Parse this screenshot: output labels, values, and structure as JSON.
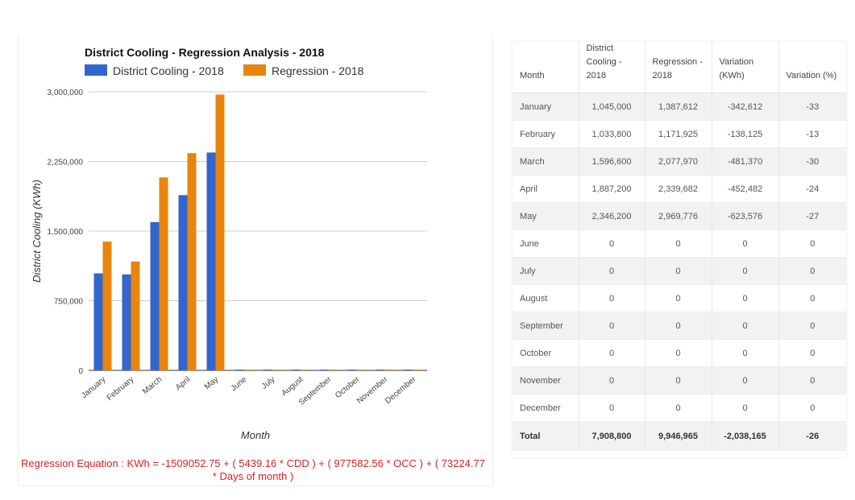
{
  "chart_data": {
    "type": "bar",
    "title": "District Cooling - Regression Analysis - 2018",
    "xlabel": "Month",
    "ylabel": "District Cooling (KWh)",
    "ylim": [
      0,
      3000000
    ],
    "yticks": [
      "0",
      "750,000",
      "1,500,000",
      "2,250,000",
      "3,000,000"
    ],
    "ytick_values": [
      0,
      750000,
      1500000,
      2250000,
      3000000
    ],
    "categories": [
      "January",
      "February",
      "March",
      "April",
      "May",
      "June",
      "July",
      "August",
      "September",
      "October",
      "November",
      "December"
    ],
    "series": [
      {
        "name": "District Cooling - 2018",
        "color": "#3366cc",
        "values": [
          1045000,
          1033800,
          1596600,
          1887200,
          2346200,
          0,
          0,
          0,
          0,
          0,
          0,
          0
        ]
      },
      {
        "name": "Regression - 2018",
        "color": "#e8850c",
        "values": [
          1387612,
          1171925,
          2077970,
          2339682,
          2969776,
          0,
          0,
          0,
          0,
          0,
          0,
          0
        ]
      }
    ],
    "legend": "top-left",
    "grid": true
  },
  "equation": "Regression Equation : KWh = -1509052.75 + ( 5439.16 * CDD ) + ( 977582.56 * OCC ) + ( 73224.77 * Days of month )",
  "table": {
    "headers": [
      "Month",
      "District Cooling - 2018",
      "Regression - 2018",
      "Variation (KWh)",
      "Variation (%)"
    ],
    "rows": [
      [
        "January",
        "1,045,000",
        "1,387,612",
        "-342,612",
        "-33"
      ],
      [
        "February",
        "1,033,800",
        "1,171,925",
        "-138,125",
        "-13"
      ],
      [
        "March",
        "1,596,600",
        "2,077,970",
        "-481,370",
        "-30"
      ],
      [
        "April",
        "1,887,200",
        "2,339,682",
        "-452,482",
        "-24"
      ],
      [
        "May",
        "2,346,200",
        "2,969,776",
        "-623,576",
        "-27"
      ],
      [
        "June",
        "0",
        "0",
        "0",
        "0"
      ],
      [
        "July",
        "0",
        "0",
        "0",
        "0"
      ],
      [
        "August",
        "0",
        "0",
        "0",
        "0"
      ],
      [
        "September",
        "0",
        "0",
        "0",
        "0"
      ],
      [
        "October",
        "0",
        "0",
        "0",
        "0"
      ],
      [
        "November",
        "0",
        "0",
        "0",
        "0"
      ],
      [
        "December",
        "0",
        "0",
        "0",
        "0"
      ]
    ],
    "total": [
      "Total",
      "7,908,800",
      "9,946,965",
      "-2,038,165",
      "-26"
    ]
  }
}
